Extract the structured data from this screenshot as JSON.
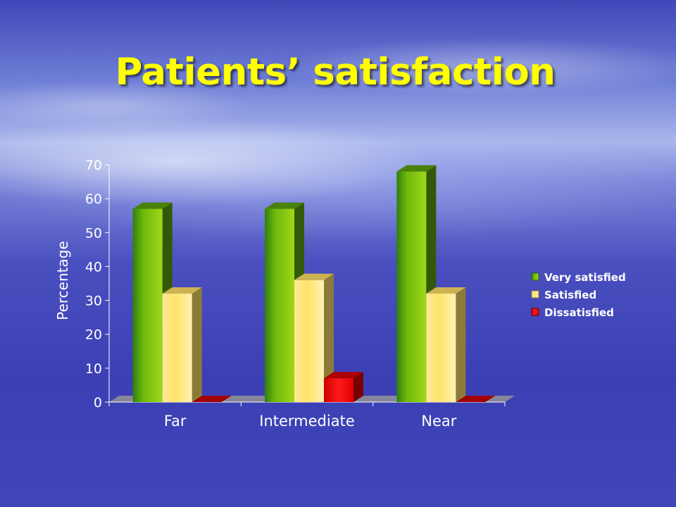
{
  "slide": {
    "title": "Patients’ satisfaction"
  },
  "chart_data": {
    "type": "bar",
    "title": "",
    "xlabel": "",
    "ylabel": "Percentage",
    "ylim": [
      0,
      70
    ],
    "yticks": [
      0,
      10,
      20,
      30,
      40,
      50,
      60,
      70
    ],
    "categories": [
      "Far",
      "Intermediate",
      "Near"
    ],
    "series": [
      {
        "name": "Very satisfied",
        "values": [
          57,
          57,
          68
        ],
        "color": "#5aa30a"
      },
      {
        "name": "Satisfied",
        "values": [
          32,
          36,
          32
        ],
        "color": "#ffe066"
      },
      {
        "name": "Dissatisfied",
        "values": [
          0,
          7,
          0
        ],
        "color": "#d80000"
      }
    ],
    "legend_position": "right",
    "grid": false,
    "style": "3d-clustered-column"
  }
}
